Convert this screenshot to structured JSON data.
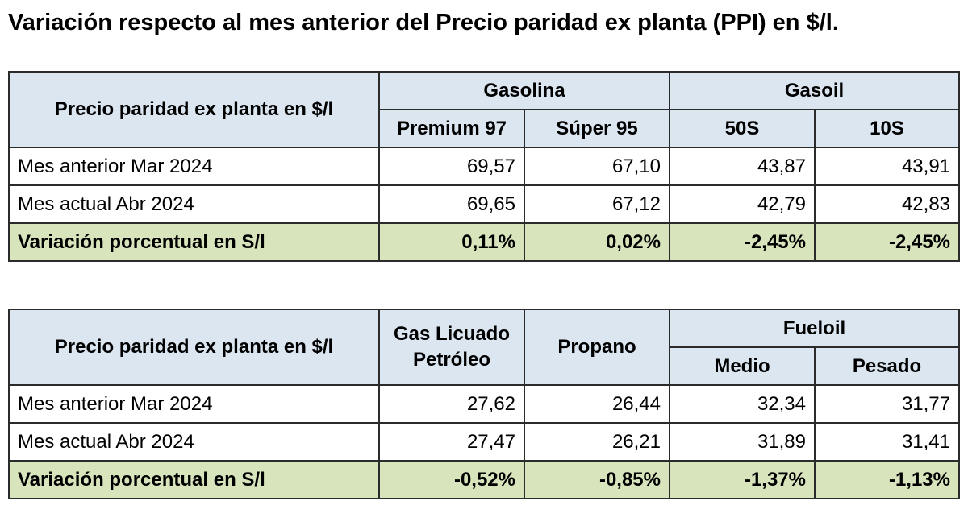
{
  "title": "Variación respecto al mes anterior del Precio paridad ex planta (PPI) en $/l.",
  "table1": {
    "corner_label": "Precio paridad ex planta en $/l",
    "group_headers": [
      "Gasolina",
      "Gasoil"
    ],
    "sub_headers": [
      "Premium 97",
      "Súper 95",
      "50S",
      "10S"
    ],
    "rows": [
      {
        "label": "Mes anterior Mar 2024",
        "values": [
          "69,57",
          "67,10",
          "43,87",
          "43,91"
        ]
      },
      {
        "label": "Mes actual Abr 2024",
        "values": [
          "69,65",
          "67,12",
          "42,79",
          "42,83"
        ]
      }
    ],
    "variation": {
      "label": "Variación porcentual en S/l",
      "values": [
        "0,11%",
        "0,02%",
        "-2,45%",
        "-2,45%"
      ]
    }
  },
  "table2": {
    "corner_label": "Precio paridad ex planta en $/l",
    "single_headers": [
      "Gas Licuado Petróleo",
      "Propano"
    ],
    "group_header": "Fueloil",
    "sub_headers": [
      "Medio",
      "Pesado"
    ],
    "rows": [
      {
        "label": "Mes anterior Mar 2024",
        "values": [
          "27,62",
          "26,44",
          "32,34",
          "31,77"
        ]
      },
      {
        "label": "Mes actual Abr 2024",
        "values": [
          "27,47",
          "26,21",
          "31,89",
          "31,41"
        ]
      }
    ],
    "variation": {
      "label": "Variación porcentual en S/l",
      "values": [
        "-0,52%",
        "-0,85%",
        "-1,37%",
        "-1,13%"
      ]
    }
  },
  "colors": {
    "header_fill": "#dce6f1",
    "variation_fill": "#d8e4bc",
    "border": "#2b2b2b"
  }
}
